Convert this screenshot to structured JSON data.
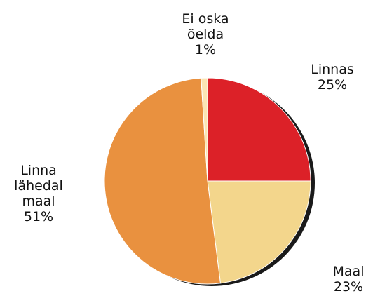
{
  "chart_data": {
    "type": "pie",
    "categories": [
      "Linnas",
      "Maal",
      "Linna lähedal maal",
      "Ei oska öelda"
    ],
    "values": [
      25,
      23,
      51,
      1
    ],
    "value_labels": [
      "25%",
      "23%",
      "51%",
      "1%"
    ],
    "colors": [
      "#dc2128",
      "#f3d68c",
      "#e9913f",
      "#fbe5b4"
    ]
  }
}
